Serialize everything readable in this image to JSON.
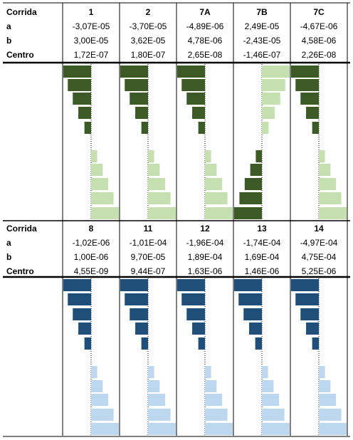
{
  "chart_data": [
    {
      "type": "bar",
      "row_labels": [
        "Corrida",
        "a",
        "b",
        "Centro"
      ],
      "runs": [
        {
          "name": "1",
          "a": "-3,07E-05",
          "b": "3,00E-05",
          "centro": "1,72E-07",
          "left_bars": [
            1.0,
            0.84,
            0.66,
            0.46,
            0.24
          ],
          "right_bars": [
            0.22,
            0.42,
            0.62,
            0.81,
            1.0
          ]
        },
        {
          "name": "2",
          "a": "-3,70E-05",
          "b": "3,62E-05",
          "centro": "1,80E-07",
          "left_bars": [
            1.0,
            0.84,
            0.66,
            0.46,
            0.24
          ],
          "right_bars": [
            0.22,
            0.42,
            0.62,
            0.81,
            1.0
          ]
        },
        {
          "name": "7A",
          "a": "-4,89E-06",
          "b": "4,78E-06",
          "centro": "2,65E-08",
          "left_bars": [
            1.0,
            0.84,
            0.66,
            0.46,
            0.24
          ],
          "right_bars": [
            0.22,
            0.42,
            0.62,
            0.81,
            1.0
          ]
        },
        {
          "name": "7B",
          "a": "2,49E-05",
          "b": "-2,43E-05",
          "centro": "-1,46E-07",
          "left_bars": [
            0.22,
            0.42,
            0.62,
            0.81,
            1.0
          ],
          "right_bars": [
            1.0,
            0.84,
            0.66,
            0.46,
            0.24
          ],
          "mirrored": true
        },
        {
          "name": "7C",
          "a": "-4,67E-06",
          "b": "4,58E-06",
          "centro": "2,26E-08",
          "left_bars": [
            1.0,
            0.84,
            0.66,
            0.46,
            0.24
          ],
          "right_bars": [
            0.22,
            0.42,
            0.62,
            0.81,
            1.0
          ]
        }
      ],
      "colors": {
        "dark": "#3b5a26",
        "light": "#c6dfb1"
      }
    },
    {
      "type": "bar",
      "row_labels": [
        "Corrida",
        "a",
        "b",
        "Centro"
      ],
      "runs": [
        {
          "name": "8",
          "a": "-1,02E-06",
          "b": "1,00E-06",
          "centro": "4,55E-09",
          "left_bars": [
            1.0,
            0.84,
            0.66,
            0.46,
            0.24
          ],
          "right_bars": [
            0.22,
            0.42,
            0.62,
            0.81,
            1.0
          ]
        },
        {
          "name": "11",
          "a": "-1,01E-04",
          "b": "9,70E-05",
          "centro": "9,44E-07",
          "left_bars": [
            1.0,
            0.84,
            0.66,
            0.46,
            0.24
          ],
          "right_bars": [
            0.22,
            0.42,
            0.62,
            0.81,
            1.0
          ]
        },
        {
          "name": "12",
          "a": "-1,96E-04",
          "b": "1,89E-04",
          "centro": "1,63E-06",
          "left_bars": [
            1.0,
            0.84,
            0.66,
            0.46,
            0.24
          ],
          "right_bars": [
            0.22,
            0.42,
            0.62,
            0.81,
            1.0
          ]
        },
        {
          "name": "13",
          "a": "-1,74E-04",
          "b": "1,69E-04",
          "centro": "1,46E-06",
          "left_bars": [
            1.0,
            0.84,
            0.66,
            0.46,
            0.24
          ],
          "right_bars": [
            0.22,
            0.42,
            0.62,
            0.81,
            1.0
          ]
        },
        {
          "name": "14",
          "a": "-4,97E-04",
          "b": "4,75E-04",
          "centro": "5,25E-06",
          "left_bars": [
            1.0,
            0.84,
            0.66,
            0.46,
            0.24
          ],
          "right_bars": [
            0.22,
            0.42,
            0.62,
            0.81,
            1.0
          ]
        }
      ],
      "colors": {
        "dark": "#1f4e79",
        "light": "#bdd7ee"
      }
    }
  ]
}
